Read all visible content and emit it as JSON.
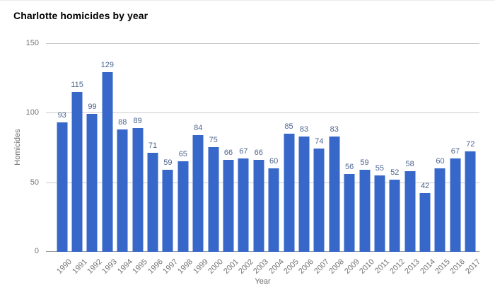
{
  "title": "Charlotte homicides by year",
  "colors": {
    "bar": "#3767c8",
    "annotation": "#4d6590",
    "axis_text": "#757575",
    "axis_title": "#6b6b6b",
    "gridline": "#cccccc",
    "baseline": "#999999",
    "title_text": "#000000",
    "background": "#ffffff"
  },
  "chart_data": {
    "type": "bar",
    "title": "Charlotte homicides by year",
    "xlabel": "Year",
    "ylabel": "Homicides",
    "ylim": [
      0,
      150
    ],
    "yticks": [
      0,
      50,
      100,
      150
    ],
    "grid": true,
    "legend": "none",
    "annotations_visible": true,
    "categories": [
      "1990",
      "1991",
      "1992",
      "1993",
      "1994",
      "1995",
      "1996",
      "1997",
      "1998",
      "1999",
      "2000",
      "2001",
      "2002",
      "2003",
      "2004",
      "2005",
      "2006",
      "2007",
      "2008",
      "2009",
      "2010",
      "2011",
      "2012",
      "2013",
      "2014",
      "2015",
      "2016",
      "2017"
    ],
    "values": [
      93,
      115,
      99,
      129,
      88,
      89,
      71,
      59,
      65,
      84,
      75,
      66,
      67,
      66,
      60,
      85,
      83,
      74,
      83,
      56,
      59,
      55,
      52,
      58,
      42,
      60,
      67,
      72
    ]
  }
}
